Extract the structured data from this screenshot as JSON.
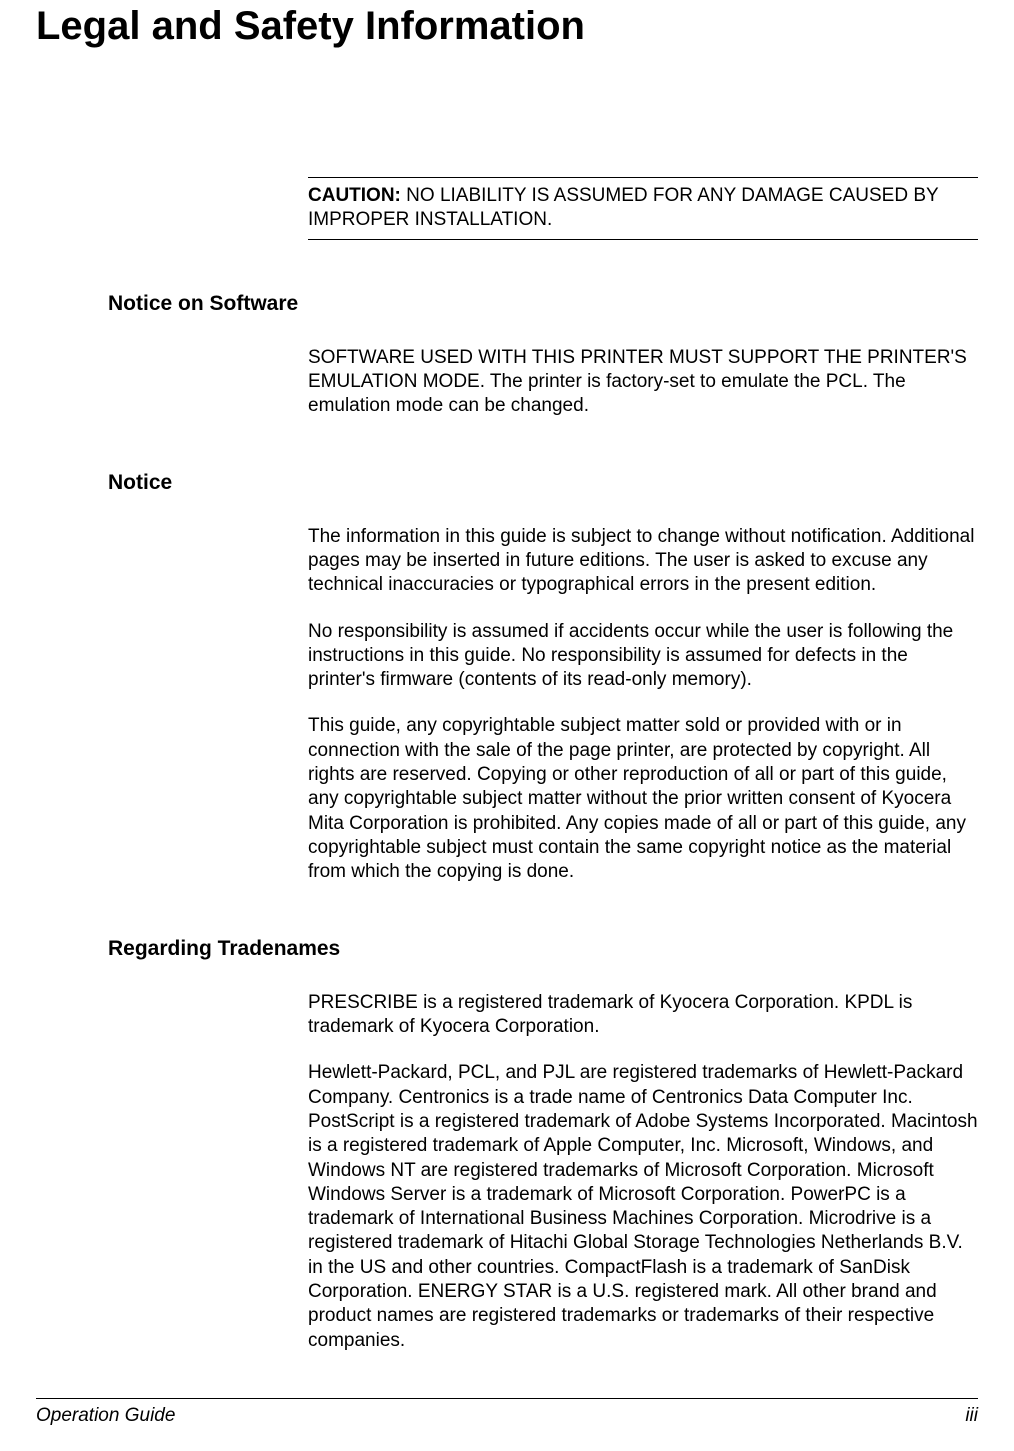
{
  "title": "Legal and Safety Information",
  "caution": {
    "label": "CAUTION:",
    "text": " NO LIABILITY IS ASSUMED FOR ANY DAMAGE CAUSED BY IMPROPER INSTALLATION."
  },
  "sections": {
    "notice_software": {
      "heading": "Notice on Software",
      "p1": "SOFTWARE USED WITH THIS PRINTER MUST SUPPORT THE PRINTER'S EMULATION MODE. The printer is factory-set to emulate the PCL. The emulation mode can be changed."
    },
    "notice": {
      "heading": "Notice",
      "p1": "The information in this guide is subject to change without notification. Additional pages may be inserted in future editions. The user is asked to excuse any technical inaccuracies or typographical errors in the present edition.",
      "p2": "No responsibility is assumed if accidents occur while the user is following the instructions in this guide. No responsibility is assumed for defects in the printer's firmware (contents of its read-only memory).",
      "p3": "This guide, any copyrightable subject matter sold or provided with or in connection with the sale of the page printer, are protected by copyright. All rights are reserved. Copying or other reproduction of all or part of this guide, any copyrightable subject matter without the prior written consent of Kyocera Mita Corporation is prohibited. Any copies made of all or part of this guide, any copyrightable subject must contain the same copyright notice as the material from which the copying is done."
    },
    "tradenames": {
      "heading": "Regarding Tradenames",
      "p1": "PRESCRIBE is a registered trademark of Kyocera Corporation. KPDL is trademark of Kyocera Corporation.",
      "p2": "Hewlett-Packard, PCL, and PJL are registered trademarks of Hewlett-Packard Company. Centronics is a trade name of Centronics Data Computer Inc. PostScript is a registered trademark of Adobe Systems Incorporated. Macintosh is a registered trademark of Apple Computer, Inc. Microsoft, Windows, and Windows NT are registered trademarks of Microsoft Corporation. Microsoft Windows Server is a trademark of Microsoft Corporation. PowerPC is a trademark of International Business Machines Corporation. Microdrive is a registered trademark of Hitachi Global Storage Technologies Netherlands B.V. in the US and other countries. CompactFlash is a trademark of SanDisk Corporation. ENERGY STAR is a U.S. registered mark. All other brand and product names are registered trademarks or trademarks of their respective companies."
    }
  },
  "footer": {
    "left": "Operation Guide",
    "right": "iii"
  }
}
